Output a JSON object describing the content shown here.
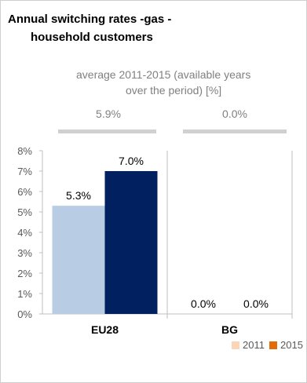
{
  "title_line1": "Annual switching rates -gas -",
  "title_line2": "household customers",
  "subtitle_line1": "average 2011-2015 (available years",
  "subtitle_line2": "over the period) [%]",
  "averages": [
    "5.9%",
    "0.0%"
  ],
  "chart_data": {
    "type": "bar",
    "categories": [
      "EU28",
      "BG"
    ],
    "series": [
      {
        "name": "2011",
        "values": [
          5.3,
          0.0
        ],
        "color": "#b8cce4",
        "legend_color": "#fbd5b5"
      },
      {
        "name": "2015",
        "values": [
          7.0,
          0.0
        ],
        "color": "#002060",
        "legend_color": "#e36c09"
      }
    ],
    "data_labels": [
      [
        "5.3%",
        "0.0%"
      ],
      [
        "7.0%",
        "0.0%"
      ]
    ],
    "y_ticks": [
      "0%",
      "1%",
      "2%",
      "3%",
      "4%",
      "5%",
      "6%",
      "7%",
      "8%"
    ],
    "ylim": [
      0,
      8
    ],
    "legend_position": "bottom-right"
  }
}
